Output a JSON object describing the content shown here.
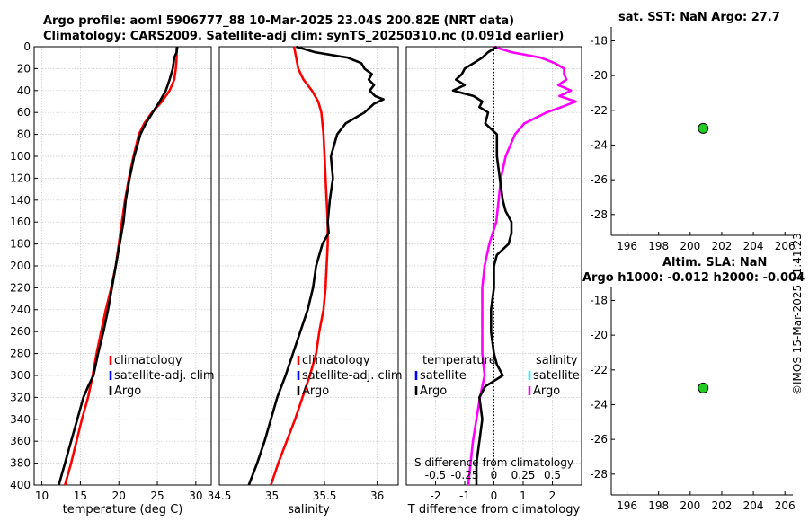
{
  "header": {
    "title_line1": "Argo profile: aoml 5906777_88 10-Mar-2025 23.04S 200.82E (NRT data)",
    "title_line2": "Climatology: CARS2009. Satellite-adj clim: synTS_20250310.nc (0.091d earlier)"
  },
  "footer": {
    "stamp": "©IMOS 15-Mar-2025 11:41:23"
  },
  "colors": {
    "climatology": "#ff0000",
    "satellite_adj": "#0000ff",
    "argo": "#000000",
    "satellite_s": "#00ffff",
    "argo_s": "#ff00ff",
    "marker": "#22cc22"
  },
  "chart_data": [
    {
      "id": "temperature",
      "type": "line",
      "xlabel": "temperature (deg C)",
      "xlim": [
        9,
        32
      ],
      "ylim": [
        400,
        0
      ],
      "xticks": [
        10,
        15,
        20,
        25,
        30
      ],
      "yticks": [
        0,
        20,
        40,
        60,
        80,
        100,
        120,
        140,
        160,
        180,
        200,
        220,
        240,
        260,
        280,
        300,
        320,
        340,
        360,
        380,
        400
      ],
      "legend": [
        "climatology",
        "satellite-adj. clim",
        "Argo"
      ],
      "series": [
        {
          "name": "climatology",
          "color": "#ff0000",
          "depth": [
            0,
            10,
            20,
            30,
            40,
            50,
            60,
            70,
            80,
            100,
            120,
            140,
            160,
            180,
            200,
            220,
            240,
            260,
            280,
            300,
            320,
            340,
            360,
            380,
            400
          ],
          "values": [
            27.5,
            27.5,
            27.4,
            27.2,
            26.6,
            25.6,
            24.3,
            23.3,
            22.6,
            21.9,
            21.3,
            20.8,
            20.4,
            20.0,
            19.6,
            19.0,
            18.3,
            17.7,
            17.1,
            16.6,
            16.0,
            15.2,
            14.5,
            13.8,
            13.0
          ]
        },
        {
          "name": "Argo",
          "color": "#000000",
          "depth": [
            0,
            5,
            10,
            20,
            30,
            40,
            50,
            60,
            70,
            80,
            90,
            100,
            120,
            140,
            160,
            180,
            200,
            220,
            240,
            260,
            280,
            300,
            310,
            320,
            340,
            360,
            380,
            400
          ],
          "values": [
            27.6,
            27.5,
            27.2,
            27.0,
            26.6,
            26.1,
            25.3,
            24.4,
            23.5,
            22.8,
            22.4,
            22.0,
            21.4,
            20.9,
            20.6,
            20.1,
            19.6,
            19.1,
            18.6,
            18.0,
            17.3,
            16.7,
            16.0,
            15.4,
            14.6,
            13.8,
            13.0,
            12.2
          ]
        }
      ]
    },
    {
      "id": "salinity",
      "type": "line",
      "xlabel": "salinity",
      "xlim": [
        34.5,
        36.2
      ],
      "ylim": [
        400,
        0
      ],
      "xticks": [
        34.5,
        35,
        35.5,
        36
      ],
      "xticklabels": [
        "34.5",
        "35",
        "35.5",
        "36"
      ],
      "legend": [
        "climatology",
        "satellite-adj. clim",
        "Argo"
      ],
      "series": [
        {
          "name": "climatology",
          "color": "#ff0000",
          "depth": [
            0,
            10,
            20,
            30,
            40,
            50,
            60,
            70,
            80,
            100,
            120,
            140,
            160,
            180,
            200,
            220,
            240,
            260,
            280,
            300,
            320,
            340,
            360,
            380,
            400
          ],
          "values": [
            35.21,
            35.23,
            35.25,
            35.3,
            35.38,
            35.44,
            35.47,
            35.48,
            35.49,
            35.5,
            35.51,
            35.52,
            35.53,
            35.53,
            35.52,
            35.51,
            35.49,
            35.45,
            35.42,
            35.36,
            35.29,
            35.22,
            35.14,
            35.06,
            34.99
          ]
        },
        {
          "name": "Argo",
          "color": "#000000",
          "depth": [
            0,
            5,
            10,
            15,
            20,
            25,
            30,
            35,
            40,
            45,
            48,
            52,
            60,
            70,
            80,
            100,
            120,
            140,
            160,
            170,
            180,
            200,
            220,
            240,
            260,
            280,
            300,
            320,
            340,
            360,
            380,
            400
          ],
          "values": [
            35.23,
            35.41,
            35.72,
            35.85,
            35.88,
            35.95,
            35.92,
            35.97,
            35.93,
            35.98,
            36.06,
            35.97,
            35.88,
            35.7,
            35.62,
            35.56,
            35.58,
            35.55,
            35.53,
            35.54,
            35.48,
            35.42,
            35.39,
            35.34,
            35.27,
            35.2,
            35.13,
            35.05,
            34.99,
            34.93,
            34.86,
            34.78
          ]
        }
      ]
    },
    {
      "id": "differences",
      "type": "line",
      "xlabel": "T difference from climatology",
      "xlabel_top": "S difference from climatology",
      "xlim": [
        -3,
        3
      ],
      "ylim": [
        400,
        0
      ],
      "xticks": [
        -2,
        -1,
        0,
        1,
        2
      ],
      "xticklabels": [
        "-2",
        "-1",
        "0",
        "1",
        "2"
      ],
      "s_ticklabels": [
        "-0.5",
        "-0.25",
        "0",
        "0.25",
        "0.5"
      ],
      "legend_headers": [
        "temperature",
        "salinity"
      ],
      "legend_t": [
        "satellite",
        "Argo"
      ],
      "legend_s": [
        "satellite",
        "Argo"
      ],
      "series": [
        {
          "name": "T Argo - clim",
          "color": "#000000",
          "depth": [
            0,
            5,
            10,
            15,
            20,
            25,
            30,
            35,
            40,
            45,
            50,
            55,
            60,
            70,
            80,
            90,
            100,
            120,
            140,
            150,
            160,
            170,
            180,
            190,
            200,
            220,
            240,
            260,
            280,
            290,
            300,
            310,
            320,
            340,
            360,
            380,
            400
          ],
          "values": [
            0.1,
            -0.2,
            -0.4,
            -0.7,
            -1.0,
            -1.1,
            -1.3,
            -1.0,
            -1.4,
            -0.7,
            -0.4,
            -0.5,
            -0.2,
            -0.3,
            0.1,
            0.1,
            0.1,
            0.2,
            0.3,
            0.4,
            0.6,
            0.6,
            0.5,
            0.1,
            0.0,
            0.0,
            -0.1,
            -0.1,
            0.0,
            0.1,
            0.3,
            -0.3,
            -0.5,
            -0.4,
            -0.5,
            -0.6,
            -0.6
          ]
        },
        {
          "name": "S Argo - clim",
          "color": "#ff00ff",
          "depth": [
            0,
            5,
            10,
            15,
            20,
            25,
            30,
            35,
            40,
            45,
            50,
            55,
            60,
            70,
            80,
            100,
            120,
            140,
            160,
            180,
            200,
            220,
            240,
            260,
            280,
            300,
            320,
            340,
            360,
            380,
            400
          ],
          "values": [
            0.0,
            0.15,
            0.4,
            0.52,
            0.6,
            0.6,
            0.62,
            0.55,
            0.66,
            0.56,
            0.7,
            0.58,
            0.45,
            0.26,
            0.18,
            0.1,
            0.06,
            0.04,
            0.02,
            -0.04,
            -0.08,
            -0.1,
            -0.1,
            -0.1,
            -0.1,
            -0.08,
            -0.12,
            -0.15,
            -0.18,
            -0.2,
            -0.22
          ]
        }
      ]
    },
    {
      "id": "sst_map",
      "type": "scatter",
      "title": "sat. SST: NaN Argo: 27.7",
      "xlim": [
        195,
        206.5
      ],
      "ylim": [
        -29.2,
        -17.2
      ],
      "xticks": [
        196,
        198,
        200,
        202,
        204,
        206
      ],
      "yticks": [
        -18,
        -20,
        -22,
        -24,
        -26,
        -28
      ],
      "points": [
        {
          "x": 200.82,
          "y": -23.04
        }
      ]
    },
    {
      "id": "sla_map",
      "type": "scatter",
      "title": "Altim. SLA: NaN",
      "subtitle": "Argo h1000: -0.012 h2000: -0.004",
      "xlim": [
        195,
        206.5
      ],
      "ylim": [
        -29.2,
        -17.2
      ],
      "xticks": [
        196,
        198,
        200,
        202,
        204,
        206
      ],
      "yticks": [
        -18,
        -20,
        -22,
        -24,
        -26,
        -28
      ],
      "points": [
        {
          "x": 200.82,
          "y": -23.04
        }
      ]
    }
  ]
}
